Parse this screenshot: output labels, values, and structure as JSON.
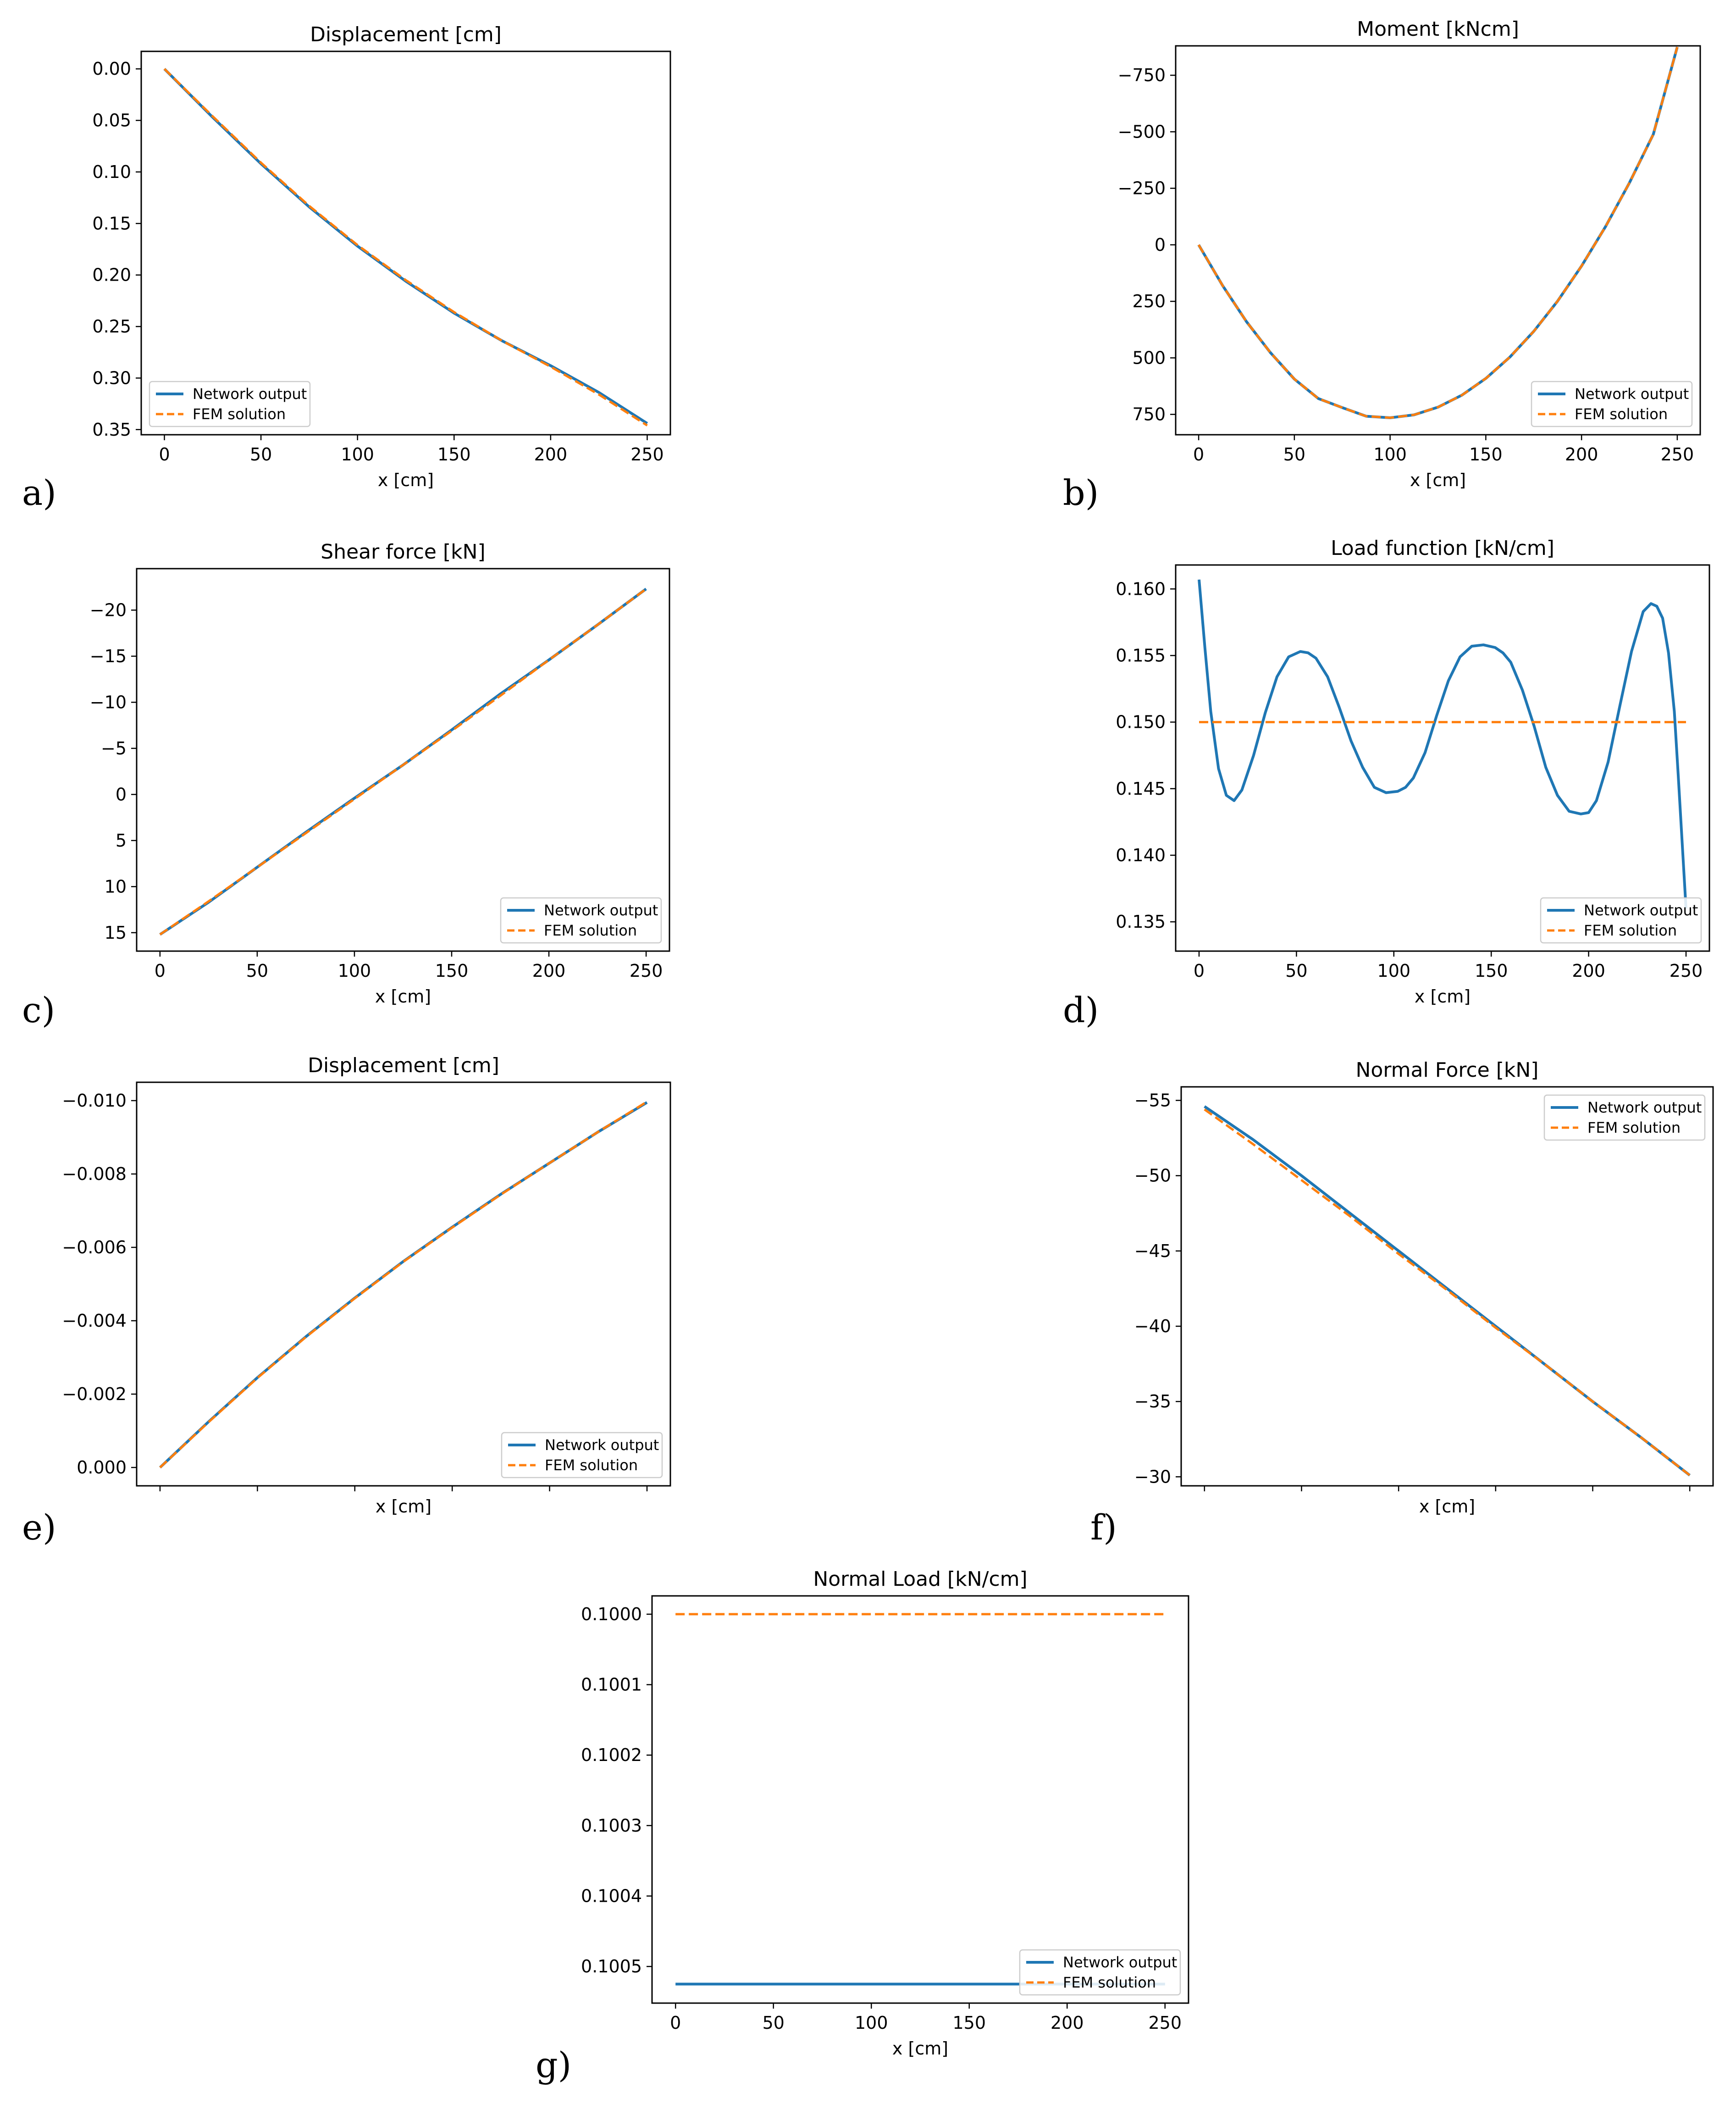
{
  "colors": {
    "network": "#1f77b4",
    "fem": "#ff7f0e",
    "axis": "#000000"
  },
  "panel_labels": [
    "a)",
    "b)",
    "c)",
    "d)",
    "e)",
    "f)",
    "g)"
  ],
  "chart_data": [
    {
      "id": "a",
      "type": "line",
      "title": "Displacement [cm]",
      "xlabel": "x [cm]",
      "ylabel": "",
      "xlim": [
        -12,
        262
      ],
      "ylim": [
        0.355,
        -0.017
      ],
      "y_inverted": true,
      "xticks": [
        0,
        50,
        100,
        150,
        200,
        250
      ],
      "xtick_labels": [
        "0",
        "50",
        "100",
        "150",
        "200",
        "250"
      ],
      "yticks": [
        0,
        0.05,
        0.1,
        0.15,
        0.2,
        0.25,
        0.3,
        0.35
      ],
      "ytick_labels": [
        "0.00",
        "0.05",
        "0.10",
        "0.15",
        "0.20",
        "0.25",
        "0.30",
        "0.35"
      ],
      "legend": {
        "position": "lower-left",
        "entries": [
          "Network output",
          "FEM solution"
        ]
      },
      "series": [
        {
          "name": "Network output",
          "style": "solid",
          "x": [
            0,
            25,
            50,
            75,
            100,
            125,
            150,
            175,
            200,
            225,
            250
          ],
          "y": [
            0.0,
            0.047,
            0.092,
            0.134,
            0.172,
            0.206,
            0.237,
            0.264,
            0.288,
            0.314,
            0.344
          ]
        },
        {
          "name": "FEM solution",
          "style": "dashed",
          "x": [
            0,
            25,
            50,
            75,
            100,
            125,
            150,
            175,
            200,
            225,
            250
          ],
          "y": [
            0.0,
            0.046,
            0.091,
            0.133,
            0.171,
            0.205,
            0.236,
            0.264,
            0.289,
            0.316,
            0.346
          ]
        }
      ]
    },
    {
      "id": "b",
      "type": "line",
      "title": "Moment [kNcm]",
      "xlabel": "x [cm]",
      "ylabel": "",
      "xlim": [
        -12,
        262
      ],
      "ylim": [
        840,
        -880
      ],
      "y_inverted": true,
      "xticks": [
        0,
        50,
        100,
        150,
        200,
        250
      ],
      "xtick_labels": [
        "0",
        "50",
        "100",
        "150",
        "200",
        "250"
      ],
      "yticks": [
        -750,
        -500,
        -250,
        0,
        250,
        500,
        750
      ],
      "ytick_labels": [
        "−750",
        "−500",
        "−250",
        "0",
        "250",
        "500",
        "750"
      ],
      "legend": {
        "position": "lower-right",
        "entries": [
          "Network output",
          "FEM solution"
        ]
      },
      "series": [
        {
          "name": "Network output",
          "style": "solid",
          "x": [
            0,
            12.5,
            25,
            37.5,
            50,
            62.5,
            75,
            87.5,
            100,
            112.5,
            125,
            137.5,
            150,
            162.5,
            175,
            187.5,
            200,
            212.5,
            225,
            237.5,
            250
          ],
          "y": [
            0,
            180,
            340,
            477,
            594,
            680,
            720,
            758,
            765,
            752,
            718,
            665,
            591,
            497,
            383,
            249,
            94,
            -80,
            -274,
            -489,
            -875
          ]
        },
        {
          "name": "FEM solution",
          "style": "dashed",
          "x": [
            0,
            12.5,
            25,
            37.5,
            50,
            62.5,
            75,
            87.5,
            100,
            112.5,
            125,
            137.5,
            150,
            162.5,
            175,
            187.5,
            200,
            212.5,
            225,
            237.5,
            250
          ],
          "y": [
            0,
            180,
            340,
            477,
            594,
            680,
            720,
            758,
            765,
            752,
            718,
            665,
            591,
            497,
            383,
            249,
            94,
            -80,
            -274,
            -489,
            -875
          ]
        }
      ]
    },
    {
      "id": "c",
      "type": "line",
      "title": "Shear force [kN]",
      "xlabel": "x [cm]",
      "ylabel": "",
      "xlim": [
        -12,
        262
      ],
      "ylim": [
        17,
        -24.5
      ],
      "y_inverted": true,
      "xticks": [
        0,
        50,
        100,
        150,
        200,
        250
      ],
      "xtick_labels": [
        "0",
        "50",
        "100",
        "150",
        "200",
        "250"
      ],
      "yticks": [
        -20,
        -15,
        -10,
        -5,
        0,
        5,
        10,
        15
      ],
      "ytick_labels": [
        "−20",
        "−15",
        "−10",
        "−5",
        "0",
        "5",
        "10",
        "15"
      ],
      "legend": {
        "position": "lower-right",
        "entries": [
          "Network output",
          "FEM solution"
        ]
      },
      "series": [
        {
          "name": "Network output",
          "style": "solid",
          "x": [
            0,
            25,
            50,
            75,
            100,
            125,
            150,
            175,
            200,
            225,
            250
          ],
          "y": [
            15.2,
            11.7,
            7.9,
            4.1,
            0.4,
            -3.2,
            -7.0,
            -10.9,
            -14.6,
            -18.4,
            -22.3
          ]
        },
        {
          "name": "FEM solution",
          "style": "dashed",
          "x": [
            0,
            25,
            50,
            75,
            100,
            125,
            150,
            175,
            200,
            225,
            250
          ],
          "y": [
            15.2,
            11.6,
            7.9,
            4.2,
            0.5,
            -3.2,
            -6.9,
            -10.7,
            -14.6,
            -18.4,
            -22.3
          ]
        }
      ]
    },
    {
      "id": "d",
      "type": "line",
      "title": "Load function [kN/cm]",
      "xlabel": "x [cm]",
      "ylabel": "",
      "xlim": [
        -12,
        262
      ],
      "ylim": [
        0.1328,
        0.1618
      ],
      "y_inverted": false,
      "xticks": [
        0,
        50,
        100,
        150,
        200,
        250
      ],
      "xtick_labels": [
        "0",
        "50",
        "100",
        "150",
        "200",
        "250"
      ],
      "yticks": [
        0.135,
        0.14,
        0.145,
        0.15,
        0.155,
        0.16
      ],
      "ytick_labels": [
        "0.135",
        "0.140",
        "0.145",
        "0.150",
        "0.155",
        "0.160"
      ],
      "legend": {
        "position": "lower-right",
        "entries": [
          "Network output",
          "FEM solution"
        ]
      },
      "series": [
        {
          "name": "Network output",
          "style": "solid",
          "x": [
            0,
            3,
            6,
            10,
            14,
            18,
            22,
            28,
            34,
            40,
            46,
            52,
            56,
            60,
            66,
            72,
            78,
            84,
            90,
            96,
            102,
            106,
            110,
            116,
            122,
            128,
            134,
            140,
            146,
            152,
            156,
            160,
            166,
            172,
            178,
            184,
            190,
            196,
            200,
            204,
            210,
            216,
            222,
            228,
            232,
            235,
            238,
            241,
            244,
            246,
            248,
            250
          ],
          "y": [
            0.1607,
            0.1556,
            0.1508,
            0.1465,
            0.1445,
            0.1441,
            0.1449,
            0.1475,
            0.1507,
            0.1534,
            0.1549,
            0.1553,
            0.1552,
            0.1548,
            0.1534,
            0.1511,
            0.1486,
            0.1466,
            0.1451,
            0.1447,
            0.1448,
            0.1451,
            0.1458,
            0.1477,
            0.1505,
            0.1531,
            0.1549,
            0.1557,
            0.1558,
            0.1556,
            0.1552,
            0.1545,
            0.1524,
            0.1497,
            0.1466,
            0.1445,
            0.1433,
            0.1431,
            0.1432,
            0.1441,
            0.147,
            0.1512,
            0.1553,
            0.1583,
            0.1589,
            0.1587,
            0.1578,
            0.1552,
            0.1508,
            0.146,
            0.141,
            0.136
          ]
        },
        {
          "name": "FEM solution",
          "style": "dashed",
          "x": [
            0,
            250
          ],
          "y": [
            0.15,
            0.15
          ]
        }
      ]
    },
    {
      "id": "e",
      "type": "line",
      "title": "Displacement [cm]",
      "xlabel": "x [cm]",
      "ylabel": "",
      "xlim": [
        -12,
        262
      ],
      "ylim": [
        0.0005,
        -0.0105
      ],
      "y_inverted": true,
      "xticks": [
        0,
        50,
        100,
        150,
        200,
        250
      ],
      "xtick_labels": [
        "",
        "",
        "",
        "",
        "",
        ""
      ],
      "yticks": [
        -0.01,
        -0.008,
        -0.006,
        -0.004,
        -0.002,
        0
      ],
      "ytick_labels": [
        "−0.010",
        "−0.008",
        "−0.006",
        "−0.004",
        "−0.002",
        "0.000"
      ],
      "legend": {
        "position": "lower-right",
        "entries": [
          "Network output",
          "FEM solution"
        ]
      },
      "series": [
        {
          "name": "Network output",
          "style": "solid",
          "x": [
            0,
            25,
            50,
            75,
            100,
            125,
            150,
            175,
            200,
            225,
            250
          ],
          "y": [
            0,
            -0.00125,
            -0.00245,
            -0.00357,
            -0.00462,
            -0.00562,
            -0.00655,
            -0.00745,
            -0.0083,
            -0.00915,
            -0.00995
          ]
        },
        {
          "name": "FEM solution",
          "style": "dashed",
          "x": [
            0,
            25,
            50,
            75,
            100,
            125,
            150,
            175,
            200,
            225,
            250
          ],
          "y": [
            0,
            -0.00124,
            -0.00244,
            -0.00356,
            -0.00461,
            -0.00561,
            -0.00654,
            -0.00744,
            -0.0083,
            -0.00915,
            -0.00997
          ]
        }
      ]
    },
    {
      "id": "f",
      "type": "line",
      "title": "Normal Force [kN]",
      "xlabel": "x [cm]",
      "ylabel": "",
      "xlim": [
        -12,
        262
      ],
      "ylim": [
        -29.4,
        -55.9
      ],
      "y_inverted": true,
      "xticks": [
        0,
        50,
        100,
        150,
        200,
        250
      ],
      "xtick_labels": [
        "",
        "",
        "",
        "",
        "",
        ""
      ],
      "yticks": [
        -55,
        -50,
        -45,
        -40,
        -35,
        -30
      ],
      "ytick_labels": [
        "−55",
        "−50",
        "−45",
        "−40",
        "−35",
        "−30"
      ],
      "legend": {
        "position": "upper-right",
        "entries": [
          "Network output",
          "FEM solution"
        ]
      },
      "series": [
        {
          "name": "Network output",
          "style": "solid",
          "x": [
            0,
            25,
            50,
            75,
            100,
            125,
            150,
            175,
            200,
            225,
            250
          ],
          "y": [
            -54.6,
            -52.4,
            -50.0,
            -47.5,
            -45.0,
            -42.5,
            -40.0,
            -37.5,
            -35.0,
            -32.6,
            -30.1
          ]
        },
        {
          "name": "FEM solution",
          "style": "dashed",
          "x": [
            0,
            25,
            50,
            75,
            100,
            125,
            150,
            175,
            200,
            225,
            250
          ],
          "y": [
            -54.4,
            -52.1,
            -49.7,
            -47.3,
            -44.8,
            -42.4,
            -39.9,
            -37.5,
            -35.0,
            -32.6,
            -30.1
          ]
        }
      ]
    },
    {
      "id": "g",
      "type": "line",
      "title": "Normal Load [kN/cm]",
      "xlabel": "x [cm]",
      "ylabel": "",
      "xlim": [
        -12,
        262
      ],
      "ylim": [
        0.100552,
        0.099974
      ],
      "y_inverted": true,
      "xticks": [
        0,
        50,
        100,
        150,
        200,
        250
      ],
      "xtick_labels": [
        "0",
        "50",
        "100",
        "150",
        "200",
        "250"
      ],
      "yticks": [
        0.1,
        0.1001,
        0.1002,
        0.1003,
        0.1004,
        0.1005
      ],
      "ytick_labels": [
        "0.1000",
        "0.1001",
        "0.1002",
        "0.1003",
        "0.1004",
        "0.1005"
      ],
      "legend": {
        "position": "lower-right",
        "entries": [
          "Network output",
          "FEM solution"
        ]
      },
      "series": [
        {
          "name": "Network output",
          "style": "solid",
          "x": [
            0,
            250
          ],
          "y": [
            0.100525,
            0.100525
          ]
        },
        {
          "name": "FEM solution",
          "style": "dashed",
          "x": [
            0,
            250
          ],
          "y": [
            0.1,
            0.1
          ]
        }
      ]
    }
  ]
}
